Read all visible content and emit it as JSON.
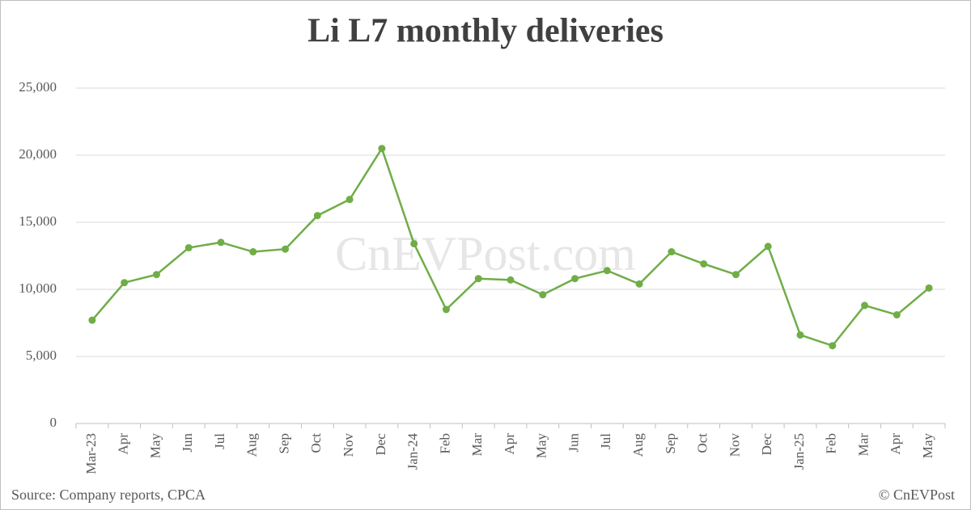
{
  "chart_data": {
    "type": "line",
    "title": "Li L7 monthly deliveries",
    "categories": [
      "Mar-23",
      "Apr",
      "May",
      "Jun",
      "Jul",
      "Aug",
      "Sep",
      "Oct",
      "Nov",
      "Dec",
      "Jan-24",
      "Feb",
      "Mar",
      "Apr",
      "May",
      "Jun",
      "Jul",
      "Aug",
      "Sep",
      "Oct",
      "Nov",
      "Dec",
      "Jan-25",
      "Feb",
      "Mar",
      "Apr",
      "May"
    ],
    "series": [
      {
        "name": "Li L7",
        "color": "#70ad47",
        "values": [
          7700,
          10500,
          11100,
          13100,
          13500,
          12800,
          13000,
          15500,
          16700,
          20500,
          13400,
          8500,
          10800,
          10700,
          9600,
          10800,
          11400,
          10400,
          12800,
          11900,
          11100,
          13200,
          6600,
          5800,
          8800,
          8100,
          10100
        ]
      }
    ],
    "ylim": [
      0,
      25000
    ],
    "yticks": [
      0,
      {
        "value": 5000,
        "label": "5,000"
      },
      {
        "value": 10000,
        "label": "10,000"
      },
      {
        "value": 15000,
        "label": "15,000"
      },
      {
        "value": 20000,
        "label": "20,000"
      },
      {
        "value": 25000,
        "label": "25,000"
      }
    ],
    "grid": true,
    "watermark": "CnEVPost.com",
    "source": "Source: Company reports, CPCA",
    "copyright": "© CnEVPost"
  }
}
